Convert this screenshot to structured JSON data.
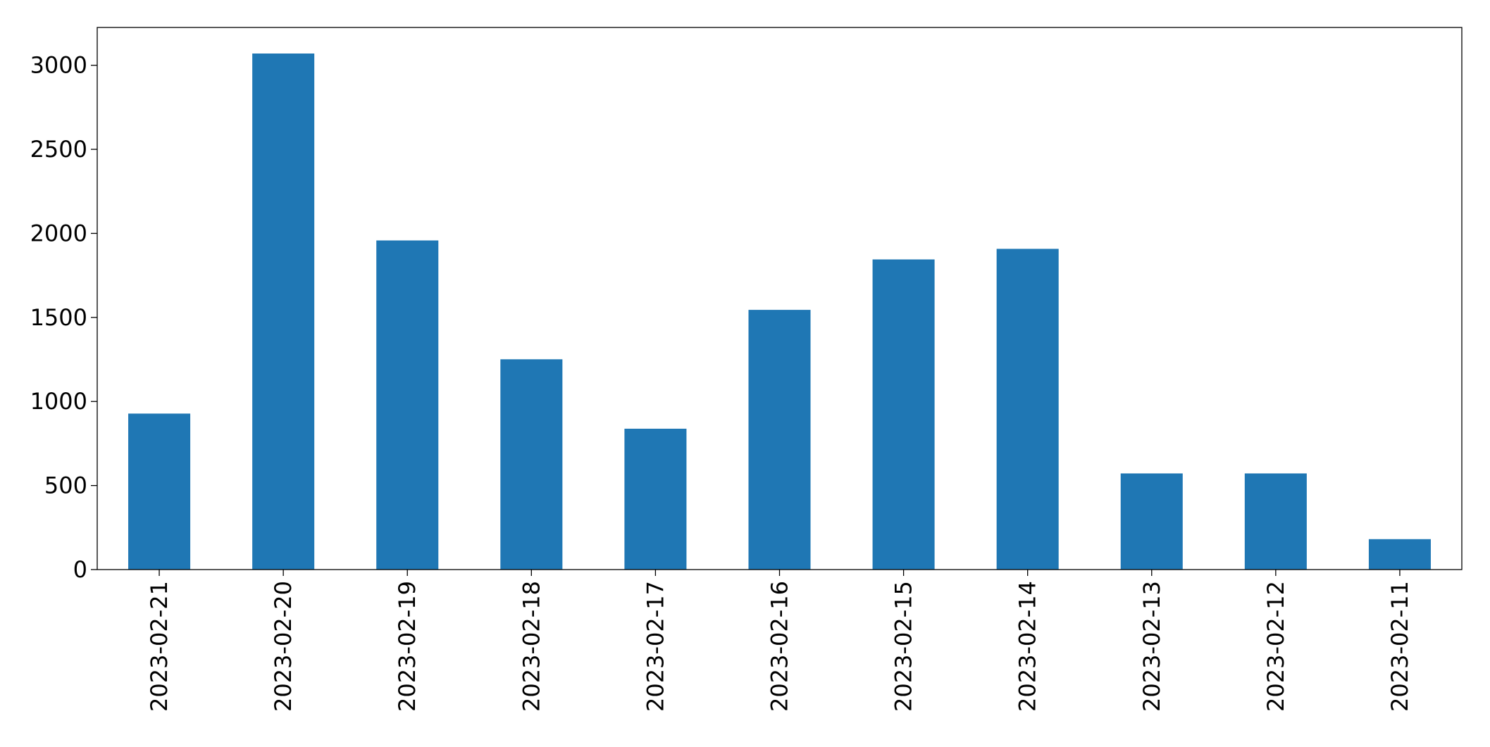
{
  "chart_data": {
    "type": "bar",
    "categories": [
      "2023-02-21",
      "2023-02-20",
      "2023-02-19",
      "2023-02-18",
      "2023-02-17",
      "2023-02-16",
      "2023-02-15",
      "2023-02-14",
      "2023-02-13",
      "2023-02-12",
      "2023-02-11"
    ],
    "values": [
      928,
      3070,
      1958,
      1251,
      838,
      1545,
      1845,
      1908,
      572,
      572,
      181
    ],
    "color": "#1f77b4",
    "ylim": [
      0,
      3225
    ],
    "yticks": [
      0,
      500,
      1000,
      1500,
      2000,
      2500,
      3000
    ],
    "grid": false
  }
}
